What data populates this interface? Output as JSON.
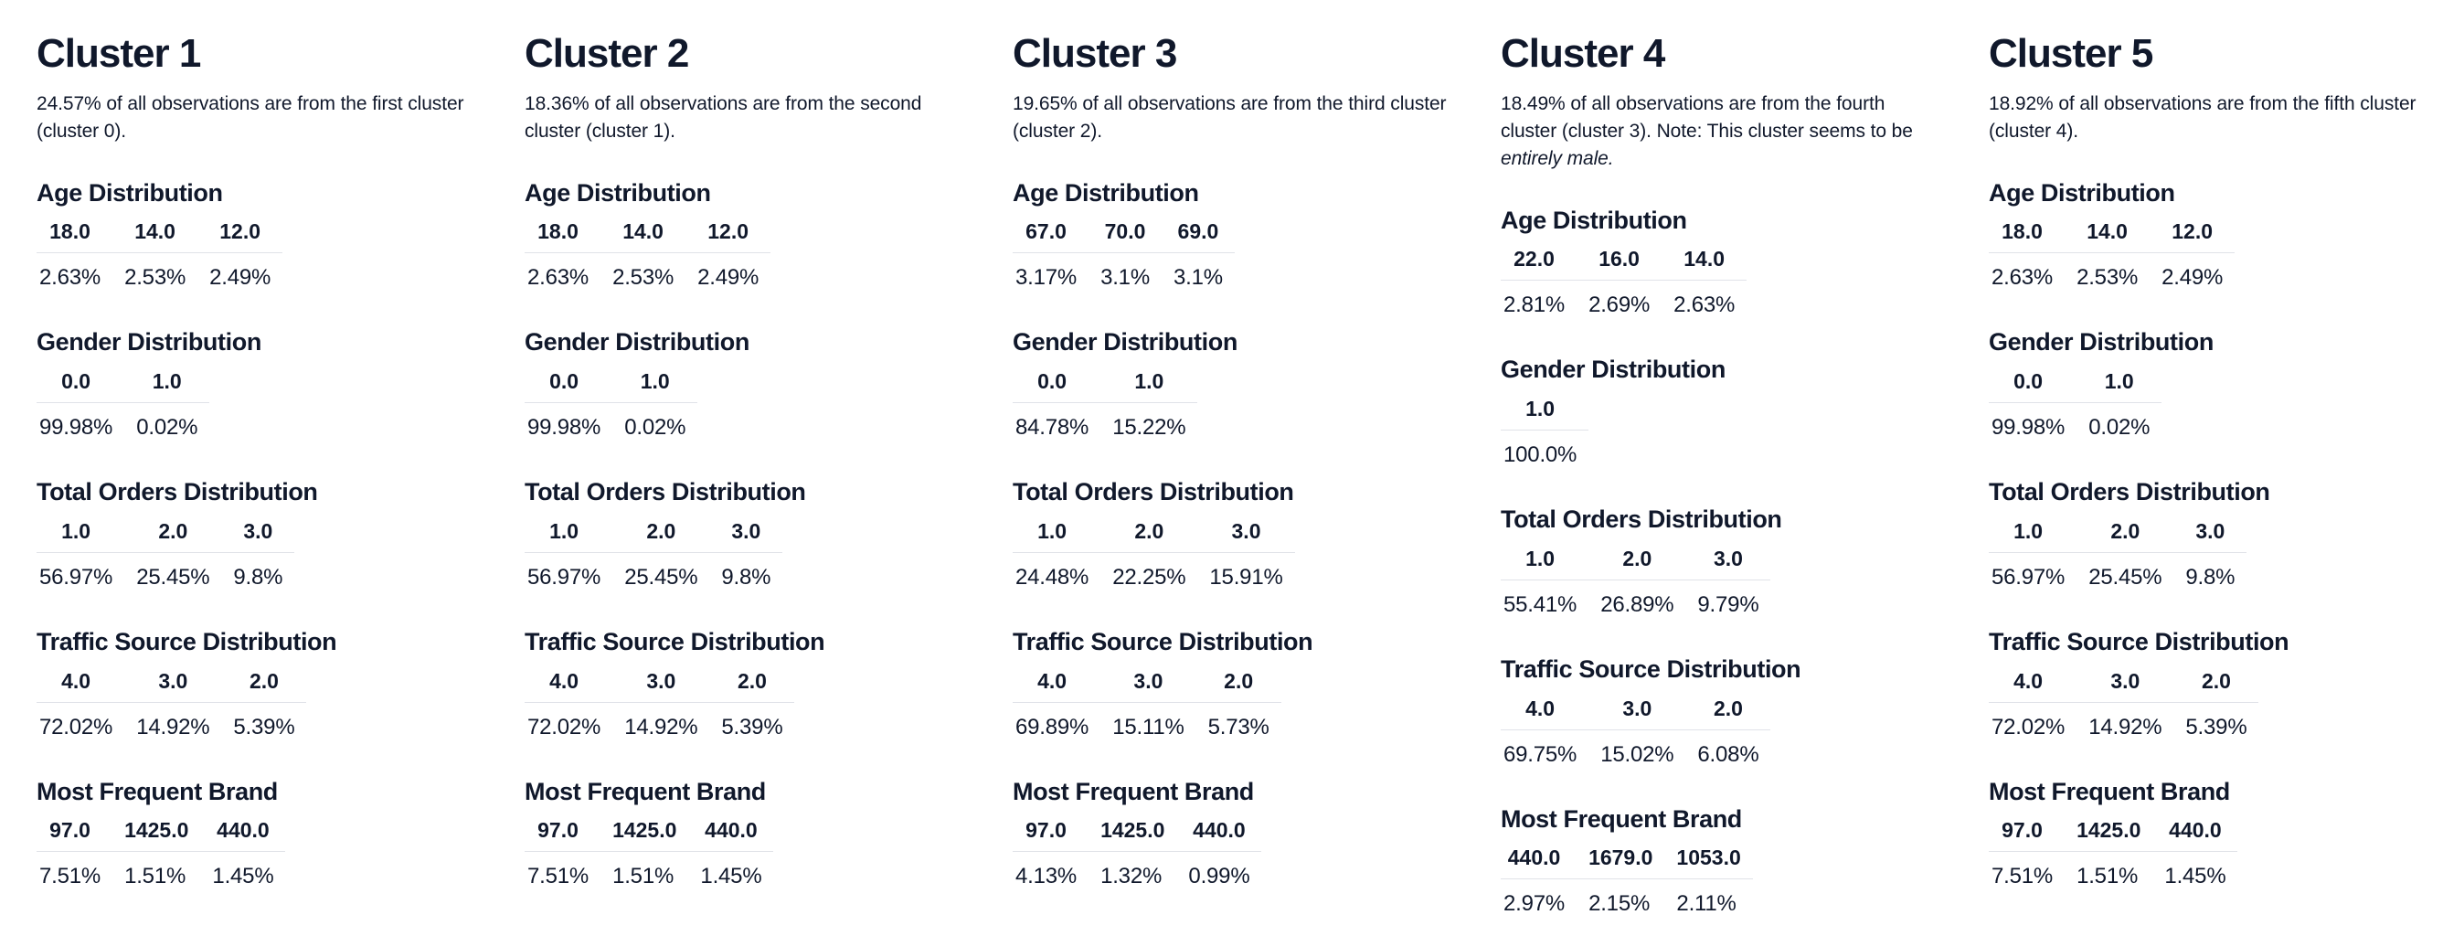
{
  "meta": {
    "background_color": "#ffffff",
    "text_color": "#10182b",
    "divider_color": "#e0e2e8"
  },
  "clusters": [
    {
      "title": "Cluster 1",
      "description_parts": [
        {
          "text": "24.57% of all observations are from the first cluster (cluster 0).",
          "italic": false
        }
      ],
      "sections": [
        {
          "title": "Age Distribution",
          "headers": [
            "18.0",
            "14.0",
            "12.0"
          ],
          "values": [
            "2.63%",
            "2.53%",
            "2.49%"
          ]
        },
        {
          "title": "Gender Distribution",
          "headers": [
            "0.0",
            "1.0"
          ],
          "values": [
            "99.98%",
            "0.02%"
          ]
        },
        {
          "title": "Total Orders Distribution",
          "headers": [
            "1.0",
            "2.0",
            "3.0"
          ],
          "values": [
            "56.97%",
            "25.45%",
            "9.8%"
          ]
        },
        {
          "title": "Traffic Source Distribution",
          "headers": [
            "4.0",
            "3.0",
            "2.0"
          ],
          "values": [
            "72.02%",
            "14.92%",
            "5.39%"
          ]
        },
        {
          "title": "Most Frequent Brand",
          "headers": [
            "97.0",
            "1425.0",
            "440.0"
          ],
          "values": [
            "7.51%",
            "1.51%",
            "1.45%"
          ]
        }
      ]
    },
    {
      "title": "Cluster 2",
      "description_parts": [
        {
          "text": "18.36% of all observations are from the second cluster (cluster 1).",
          "italic": false
        }
      ],
      "sections": [
        {
          "title": "Age Distribution",
          "headers": [
            "18.0",
            "14.0",
            "12.0"
          ],
          "values": [
            "2.63%",
            "2.53%",
            "2.49%"
          ]
        },
        {
          "title": "Gender Distribution",
          "headers": [
            "0.0",
            "1.0"
          ],
          "values": [
            "99.98%",
            "0.02%"
          ]
        },
        {
          "title": "Total Orders Distribution",
          "headers": [
            "1.0",
            "2.0",
            "3.0"
          ],
          "values": [
            "56.97%",
            "25.45%",
            "9.8%"
          ]
        },
        {
          "title": "Traffic Source Distribution",
          "headers": [
            "4.0",
            "3.0",
            "2.0"
          ],
          "values": [
            "72.02%",
            "14.92%",
            "5.39%"
          ]
        },
        {
          "title": "Most Frequent Brand",
          "headers": [
            "97.0",
            "1425.0",
            "440.0"
          ],
          "values": [
            "7.51%",
            "1.51%",
            "1.45%"
          ]
        }
      ]
    },
    {
      "title": "Cluster 3",
      "description_parts": [
        {
          "text": "19.65% of all observations are from the third cluster (cluster 2).",
          "italic": false
        }
      ],
      "sections": [
        {
          "title": "Age Distribution",
          "headers": [
            "67.0",
            "70.0",
            "69.0"
          ],
          "values": [
            "3.17%",
            "3.1%",
            "3.1%"
          ]
        },
        {
          "title": "Gender Distribution",
          "headers": [
            "0.0",
            "1.0"
          ],
          "values": [
            "84.78%",
            "15.22%"
          ]
        },
        {
          "title": "Total Orders Distribution",
          "headers": [
            "1.0",
            "2.0",
            "3.0"
          ],
          "values": [
            "24.48%",
            "22.25%",
            "15.91%"
          ]
        },
        {
          "title": "Traffic Source Distribution",
          "headers": [
            "4.0",
            "3.0",
            "2.0"
          ],
          "values": [
            "69.89%",
            "15.11%",
            "5.73%"
          ]
        },
        {
          "title": "Most Frequent Brand",
          "headers": [
            "97.0",
            "1425.0",
            "440.0"
          ],
          "values": [
            "4.13%",
            "1.32%",
            "0.99%"
          ]
        }
      ]
    },
    {
      "title": "Cluster 4",
      "description_parts": [
        {
          "text": "18.49% of all observations are from the fourth cluster (cluster 3). Note: This cluster seems to be ",
          "italic": false
        },
        {
          "text": "entirely male.",
          "italic": true
        }
      ],
      "sections": [
        {
          "title": "Age Distribution",
          "headers": [
            "22.0",
            "16.0",
            "14.0"
          ],
          "values": [
            "2.81%",
            "2.69%",
            "2.63%"
          ]
        },
        {
          "title": "Gender Distribution",
          "headers": [
            "1.0"
          ],
          "values": [
            "100.0%"
          ]
        },
        {
          "title": "Total Orders Distribution",
          "headers": [
            "1.0",
            "2.0",
            "3.0"
          ],
          "values": [
            "55.41%",
            "26.89%",
            "9.79%"
          ]
        },
        {
          "title": "Traffic Source Distribution",
          "headers": [
            "4.0",
            "3.0",
            "2.0"
          ],
          "values": [
            "69.75%",
            "15.02%",
            "6.08%"
          ]
        },
        {
          "title": "Most Frequent Brand",
          "headers": [
            "440.0",
            "1679.0",
            "1053.0"
          ],
          "values": [
            "2.97%",
            "2.15%",
            "2.11%"
          ]
        }
      ]
    },
    {
      "title": "Cluster 5",
      "description_parts": [
        {
          "text": "18.92% of all observations are from the fifth cluster (cluster 4).",
          "italic": false
        }
      ],
      "sections": [
        {
          "title": "Age Distribution",
          "headers": [
            "18.0",
            "14.0",
            "12.0"
          ],
          "values": [
            "2.63%",
            "2.53%",
            "2.49%"
          ]
        },
        {
          "title": "Gender Distribution",
          "headers": [
            "0.0",
            "1.0"
          ],
          "values": [
            "99.98%",
            "0.02%"
          ]
        },
        {
          "title": "Total Orders Distribution",
          "headers": [
            "1.0",
            "2.0",
            "3.0"
          ],
          "values": [
            "56.97%",
            "25.45%",
            "9.8%"
          ]
        },
        {
          "title": "Traffic Source Distribution",
          "headers": [
            "4.0",
            "3.0",
            "2.0"
          ],
          "values": [
            "72.02%",
            "14.92%",
            "5.39%"
          ]
        },
        {
          "title": "Most Frequent Brand",
          "headers": [
            "97.0",
            "1425.0",
            "440.0"
          ],
          "values": [
            "7.51%",
            "1.51%",
            "1.45%"
          ]
        }
      ]
    }
  ]
}
